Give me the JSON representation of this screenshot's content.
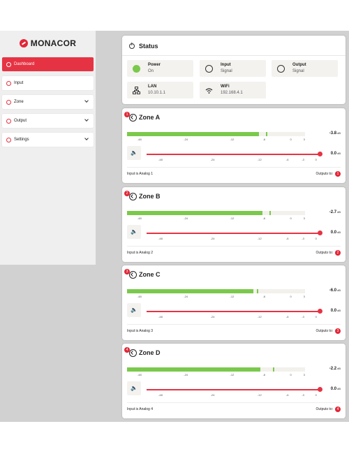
{
  "brand": "MONACOR",
  "sidebar": {
    "items": [
      {
        "label": "Dashboard",
        "active": true
      },
      {
        "label": "Input"
      },
      {
        "label": "Zone"
      },
      {
        "label": "Output"
      },
      {
        "label": "Settings"
      }
    ]
  },
  "status": {
    "title": "Status",
    "tiles": [
      {
        "label": "Power",
        "value": "On",
        "icon": "power-dot-icon"
      },
      {
        "label": "Input",
        "value": "Signal",
        "icon": "input-signal-icon"
      },
      {
        "label": "Output",
        "value": "Signal",
        "icon": "output-signal-icon"
      },
      {
        "label": "LAN",
        "value": "10.10.1.1",
        "icon": "lan-icon"
      },
      {
        "label": "WiFi",
        "value": "192.168.4.1",
        "icon": "wifi-icon"
      }
    ]
  },
  "meter_scale": [
    "-48",
    "-24",
    "-12",
    "-6",
    "0",
    "3"
  ],
  "volume_scale": [
    "-48",
    "-24",
    "-12",
    "-6",
    "-3",
    "0"
  ],
  "zones": [
    {
      "badge": "1",
      "title": "Zone A",
      "level": "-3.8",
      "level_unit": "dB",
      "meter_fill": 0.74,
      "meter_peak": 0.78,
      "volume": "0.0",
      "volume_unit": "dB",
      "volume_pos": 1.0,
      "input_text": "Input is Analog 1",
      "outputs_label": "Outputs to:",
      "output": "1"
    },
    {
      "badge": "2",
      "title": "Zone B",
      "level": "-2.7",
      "level_unit": "dB",
      "meter_fill": 0.76,
      "meter_peak": 0.8,
      "volume": "0.0",
      "volume_unit": "dB",
      "volume_pos": 1.0,
      "input_text": "Input is Analog 2",
      "outputs_label": "Outputs to:",
      "output": "2"
    },
    {
      "badge": "3",
      "title": "Zone C",
      "level": "-6.0",
      "level_unit": "dB",
      "meter_fill": 0.71,
      "meter_peak": 0.73,
      "volume": "0.0",
      "volume_unit": "dB",
      "volume_pos": 1.0,
      "input_text": "Input is Analog 3",
      "outputs_label": "Outputs to:",
      "output": "3"
    },
    {
      "badge": "4",
      "title": "Zone D",
      "level": "-2.2",
      "level_unit": "dB",
      "meter_fill": 0.75,
      "meter_peak": 0.82,
      "volume": "0.0",
      "volume_unit": "dB",
      "volume_pos": 1.0,
      "input_text": "Input is Analog 4",
      "outputs_label": "Outputs to:",
      "output": "4"
    }
  ],
  "colors": {
    "accent": "#e63343",
    "meter": "#7bc94c"
  }
}
